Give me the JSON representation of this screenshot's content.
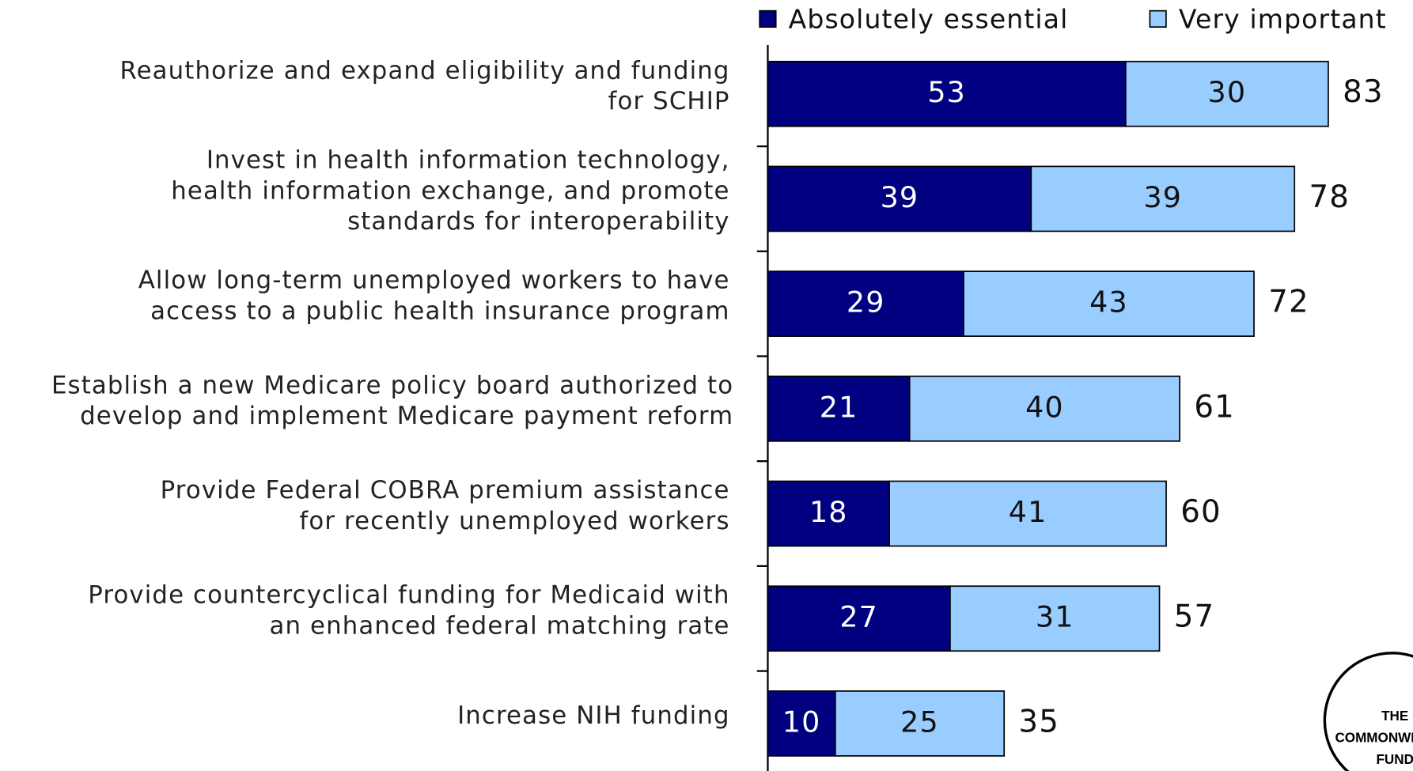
{
  "chart_data": {
    "type": "stacked-bar-horizontal",
    "categories": [
      "Reauthorize and expand eligibility and funding\nfor SCHIP",
      "Invest in health information technology,\nhealth information exchange, and promote\nstandards for interoperability",
      "Allow long-term unemployed workers to have\naccess to a public health insurance program",
      "Establish a new Medicare policy board authorized to\ndevelop and implement Medicare payment reform",
      "Provide Federal COBRA premium assistance\nfor recently unemployed workers",
      "Provide countercyclical funding for Medicaid with\nan enhanced federal matching rate",
      "Increase NIH funding"
    ],
    "series": [
      {
        "name": "Absolutely essential",
        "color": "#000080",
        "label_color": "#ffffff",
        "values": [
          53,
          39,
          29,
          21,
          18,
          27,
          10
        ]
      },
      {
        "name": "Very important",
        "color": "#99ccff",
        "label_color": "#111111",
        "values": [
          30,
          39,
          43,
          40,
          41,
          31,
          25
        ]
      }
    ],
    "totals": [
      83,
      78,
      72,
      61,
      60,
      57,
      35
    ],
    "xlim": [
      0,
      100
    ],
    "logo": [
      "THE",
      "COMMONWEALTH",
      "FUND"
    ]
  }
}
